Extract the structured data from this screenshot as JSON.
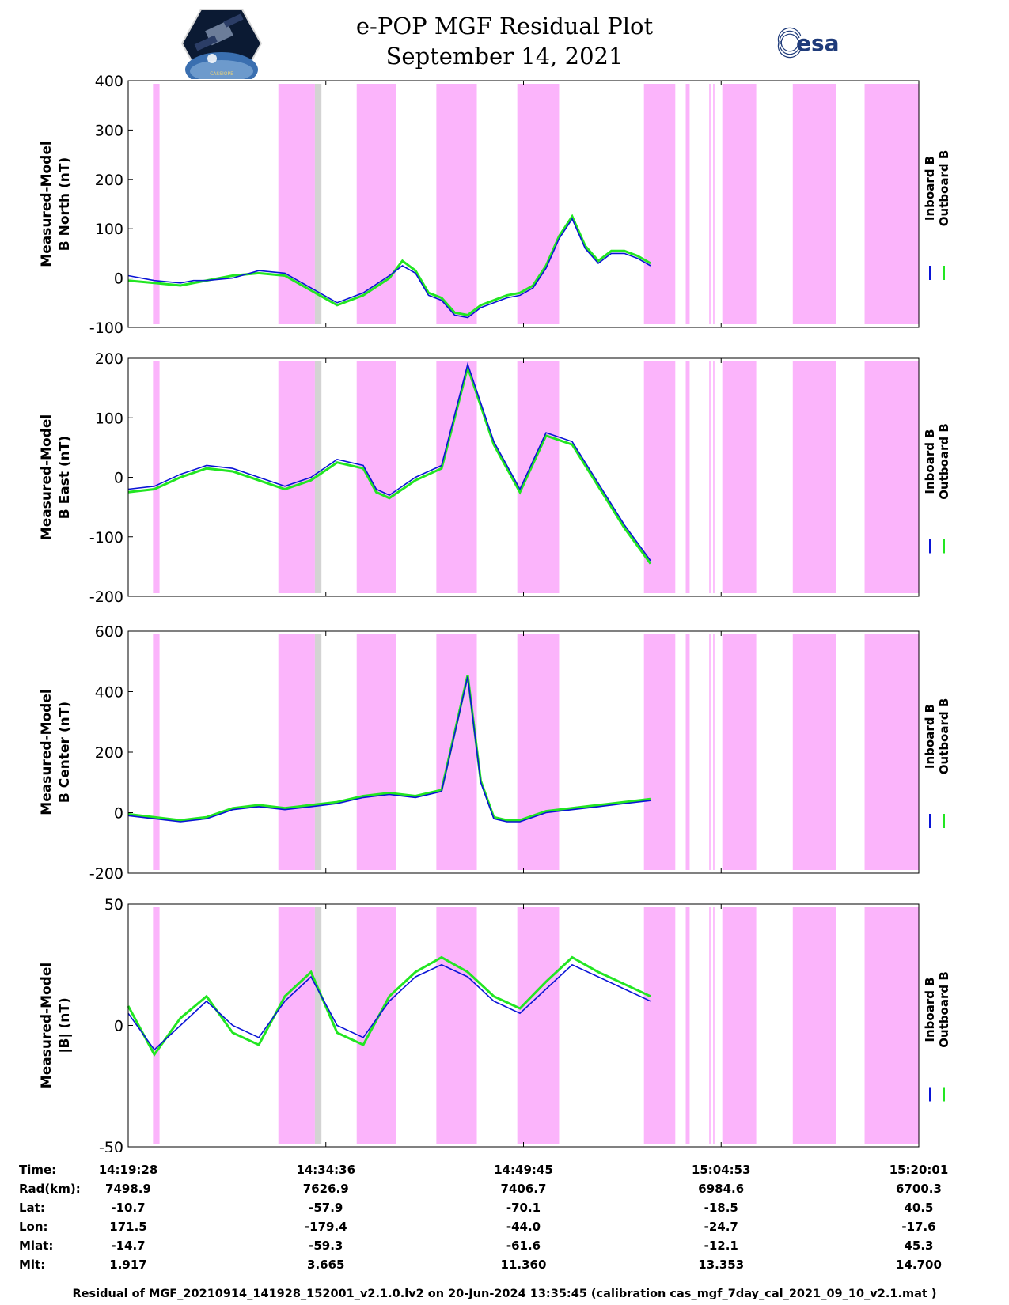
{
  "header": {
    "title_line1": "e-POP MGF Residual Plot",
    "title_line2": "September 14, 2021",
    "mission_logo_icon": "cassiope-satellite-logo",
    "mission_logo_text": "CASSIOPE",
    "agency_logo_text": "esa",
    "agency_logo_icon": "esa-logo"
  },
  "colors": {
    "inboard": "#0a14d6",
    "outboard": "#22e622",
    "shade_magenta": "#fbb4fb",
    "shade_gray": "#d3d3d3"
  },
  "chart_data": [
    {
      "type": "line",
      "ylabel_line1": "Measured-Model",
      "ylabel_line2": "B North (nT)",
      "ylim": [
        -100,
        400
      ],
      "yticks": [
        -100,
        0,
        100,
        200,
        300,
        400
      ],
      "legend": [
        "Inboard B",
        "Outboard B"
      ],
      "legend_position": "right",
      "x_unit": "minutes after 14:19:28",
      "xlim": [
        0,
        60.55
      ],
      "series": [
        {
          "name": "Inboard B",
          "x": [
            0,
            2,
            4,
            5,
            6,
            8,
            10,
            12,
            14,
            16,
            18,
            20,
            21,
            22,
            23,
            24,
            25,
            26,
            27,
            28,
            29,
            30,
            31,
            32,
            33,
            34,
            35,
            36,
            37,
            38,
            39,
            40
          ],
          "y": [
            5,
            -5,
            -10,
            -5,
            -5,
            0,
            15,
            10,
            -20,
            -50,
            -30,
            5,
            25,
            10,
            -35,
            -45,
            -75,
            -80,
            -60,
            -50,
            -40,
            -35,
            -20,
            20,
            80,
            120,
            60,
            30,
            50,
            50,
            40,
            25
          ]
        },
        {
          "name": "Outboard B",
          "x": [
            0,
            2,
            4,
            5,
            6,
            8,
            10,
            12,
            14,
            16,
            18,
            20,
            21,
            22,
            23,
            24,
            25,
            26,
            27,
            28,
            29,
            30,
            31,
            32,
            33,
            34,
            35,
            36,
            37,
            38,
            39,
            40
          ],
          "y": [
            -5,
            -10,
            -15,
            -10,
            -5,
            5,
            10,
            5,
            -25,
            -55,
            -35,
            0,
            35,
            15,
            -30,
            -40,
            -70,
            -75,
            -55,
            -45,
            -35,
            -30,
            -15,
            25,
            85,
            125,
            65,
            35,
            55,
            55,
            45,
            30
          ]
        }
      ]
    },
    {
      "type": "line",
      "ylabel_line1": "Measured-Model",
      "ylabel_line2": "B East (nT)",
      "ylim": [
        -200,
        200
      ],
      "yticks": [
        -200,
        -100,
        0,
        100,
        200
      ],
      "legend": [
        "Inboard B",
        "Outboard B"
      ],
      "legend_position": "right",
      "x_unit": "minutes after 14:19:28",
      "xlim": [
        0,
        60.55
      ],
      "series": [
        {
          "name": "Inboard B",
          "x": [
            0,
            2,
            4,
            6,
            8,
            10,
            12,
            14,
            16,
            18,
            19,
            20,
            22,
            24,
            26,
            28,
            30,
            32,
            34,
            36,
            38,
            40
          ],
          "y": [
            -20,
            -15,
            5,
            20,
            15,
            0,
            -15,
            0,
            30,
            20,
            -20,
            -30,
            0,
            20,
            190,
            60,
            -20,
            75,
            60,
            -10,
            -80,
            -140
          ]
        },
        {
          "name": "Outboard B",
          "x": [
            0,
            2,
            4,
            6,
            8,
            10,
            12,
            14,
            16,
            18,
            19,
            20,
            22,
            24,
            26,
            28,
            30,
            32,
            34,
            36,
            38,
            40
          ],
          "y": [
            -25,
            -20,
            0,
            15,
            10,
            -5,
            -20,
            -5,
            25,
            15,
            -25,
            -35,
            -5,
            15,
            185,
            55,
            -25,
            70,
            55,
            -15,
            -85,
            -145
          ]
        }
      ]
    },
    {
      "type": "line",
      "ylabel_line1": "Measured-Model",
      "ylabel_line2": "B Center (nT)",
      "ylim": [
        -200,
        600
      ],
      "yticks": [
        -200,
        0,
        200,
        400,
        600
      ],
      "legend": [
        "Inboard B",
        "Outboard B"
      ],
      "legend_position": "right",
      "x_unit": "minutes after 14:19:28",
      "xlim": [
        0,
        60.55
      ],
      "series": [
        {
          "name": "Inboard B",
          "x": [
            0,
            2,
            4,
            6,
            8,
            10,
            12,
            14,
            16,
            18,
            20,
            22,
            24,
            26,
            27,
            28,
            29,
            30,
            32,
            34,
            36,
            38,
            40
          ],
          "y": [
            -10,
            -20,
            -30,
            -20,
            10,
            20,
            10,
            20,
            30,
            50,
            60,
            50,
            70,
            450,
            100,
            -20,
            -30,
            -30,
            0,
            10,
            20,
            30,
            40
          ]
        },
        {
          "name": "Outboard B",
          "x": [
            0,
            2,
            4,
            6,
            8,
            10,
            12,
            14,
            16,
            18,
            20,
            22,
            24,
            26,
            27,
            28,
            29,
            30,
            32,
            34,
            36,
            38,
            40
          ],
          "y": [
            -5,
            -15,
            -25,
            -15,
            15,
            25,
            15,
            25,
            35,
            55,
            65,
            55,
            75,
            455,
            105,
            -15,
            -25,
            -25,
            5,
            15,
            25,
            35,
            45
          ]
        }
      ]
    },
    {
      "type": "line",
      "ylabel_line1": "Measured-Model",
      "ylabel_line2": "|B| (nT)",
      "ylim": [
        -50,
        50
      ],
      "yticks": [
        -50,
        0,
        50
      ],
      "legend": [
        "Inboard B",
        "Outboard B"
      ],
      "legend_position": "right",
      "x_unit": "minutes after 14:19:28",
      "xlim": [
        0,
        60.55
      ],
      "series": [
        {
          "name": "Inboard B",
          "x": [
            0,
            2,
            4,
            6,
            8,
            10,
            12,
            14,
            16,
            18,
            20,
            22,
            24,
            26,
            28,
            30,
            32,
            34,
            36,
            38,
            40
          ],
          "y": [
            5,
            -10,
            0,
            10,
            0,
            -5,
            10,
            20,
            0,
            -5,
            10,
            20,
            25,
            20,
            10,
            5,
            15,
            25,
            20,
            15,
            10
          ]
        },
        {
          "name": "Outboard B",
          "x": [
            0,
            2,
            4,
            6,
            8,
            10,
            12,
            14,
            16,
            18,
            20,
            22,
            24,
            26,
            28,
            30,
            32,
            34,
            36,
            38,
            40
          ],
          "y": [
            8,
            -12,
            3,
            12,
            -3,
            -8,
            12,
            22,
            -3,
            -8,
            12,
            22,
            28,
            22,
            12,
            7,
            18,
            28,
            22,
            17,
            12
          ]
        }
      ]
    }
  ],
  "shading": {
    "magenta_spans": [
      [
        1.9,
        2.4
      ],
      [
        11.5,
        14.3
      ],
      [
        17.5,
        20.5
      ],
      [
        23.6,
        26.7
      ],
      [
        29.8,
        33.0
      ],
      [
        39.5,
        41.9
      ],
      [
        42.7,
        43.0
      ],
      [
        44.5,
        44.6
      ],
      [
        44.8,
        44.9
      ],
      [
        45.5,
        48.1
      ],
      [
        50.9,
        54.2
      ],
      [
        56.4,
        60.55
      ]
    ],
    "gray_spans": [
      [
        14.3,
        14.8
      ]
    ]
  },
  "x_axis": {
    "ticks": [
      "14:19:28",
      "14:34:36",
      "14:49:45",
      "15:04:53",
      "15:20:01"
    ]
  },
  "ephemeris": {
    "rows": [
      {
        "label": "Rad(km):",
        "values": [
          "7498.9",
          "7626.9",
          "7406.7",
          "6984.6",
          "6700.3"
        ]
      },
      {
        "label": "Lat:",
        "values": [
          "-10.7",
          "-57.9",
          "-70.1",
          "-18.5",
          "40.5"
        ]
      },
      {
        "label": "Lon:",
        "values": [
          "171.5",
          "-179.4",
          "-44.0",
          "-24.7",
          "-17.6"
        ]
      },
      {
        "label": "Mlat:",
        "values": [
          "-14.7",
          "-59.3",
          "-61.6",
          "-12.1",
          "45.3"
        ]
      },
      {
        "label": "Mlt:",
        "values": [
          "1.917",
          "3.665",
          "11.360",
          "13.353",
          "14.700"
        ]
      }
    ],
    "time_label": "Time:"
  },
  "footnote": "Residual of MGF_20210914_141928_152001_v2.1.0.lv2 on 20-Jun-2024 13:35:45 (calibration cas_mgf_7day_cal_2021_09_10_v2.1.mat )"
}
